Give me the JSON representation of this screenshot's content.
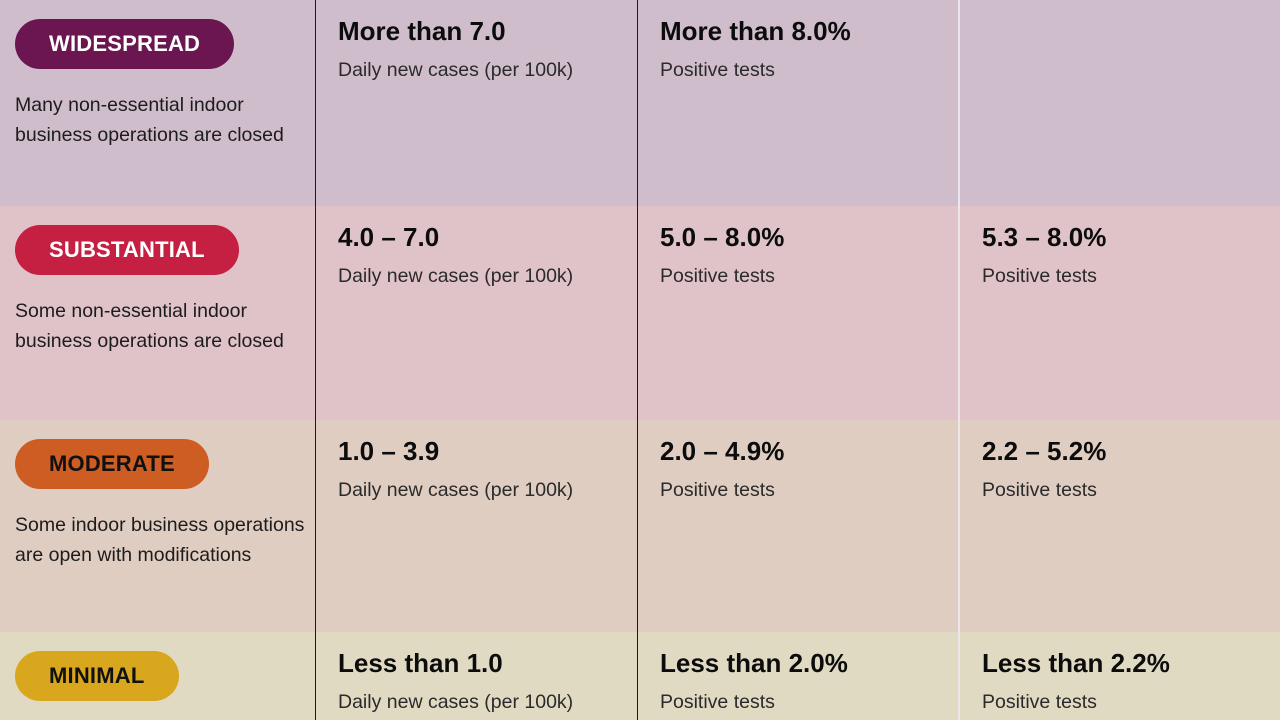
{
  "tiers": [
    {
      "name": "WIDESPREAD",
      "color": "#6b1650",
      "text_color": "#ffffff",
      "description": "Many non-essential indoor business operations are closed",
      "cases_value": "More than 7.0",
      "cases_label": "Daily new cases (per 100k)",
      "positivity_value": "More than 8.0%",
      "positivity_label": "Positive tests",
      "equity_value": "",
      "equity_label": ""
    },
    {
      "name": "SUBSTANTIAL",
      "color": "#c51f42",
      "text_color": "#ffffff",
      "description": "Some non-essential indoor business operations are closed",
      "cases_value": "4.0 – 7.0",
      "cases_label": "Daily new cases (per 100k)",
      "positivity_value": "5.0 – 8.0%",
      "positivity_label": "Positive tests",
      "equity_value": "5.3 – 8.0%",
      "equity_label": "Positive tests"
    },
    {
      "name": "MODERATE",
      "color": "#cd5d22",
      "text_color": "#111111",
      "description": "Some indoor business operations are open with modifications",
      "cases_value": "1.0 – 3.9",
      "cases_label": "Daily new cases (per 100k)",
      "positivity_value": "2.0 – 4.9%",
      "positivity_label": "Positive tests",
      "equity_value": "2.2 – 5.2%",
      "equity_label": "Positive tests"
    },
    {
      "name": "MINIMAL",
      "color": "#d9a71e",
      "text_color": "#111111",
      "description": "",
      "cases_value": "Less than 1.0",
      "cases_label": "Daily new cases (per 100k)",
      "positivity_value": "Less than 2.0%",
      "positivity_label": "Positive tests",
      "equity_value": "Less than 2.2%",
      "equity_label": "Positive tests"
    }
  ]
}
